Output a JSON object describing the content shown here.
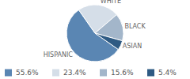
{
  "chart_data": {
    "type": "pie",
    "categories": [
      "HISPANIC",
      "WHITE",
      "BLACK",
      "ASIAN"
    ],
    "values": [
      55.6,
      23.4,
      15.6,
      5.4
    ],
    "value_labels": [
      "55.6%",
      "23.4%",
      "15.6%",
      "5.4%"
    ],
    "colors": [
      "#5a86b3",
      "#d5dee8",
      "#a3b6ca",
      "#2e5a83"
    ],
    "legend": "bottom"
  }
}
